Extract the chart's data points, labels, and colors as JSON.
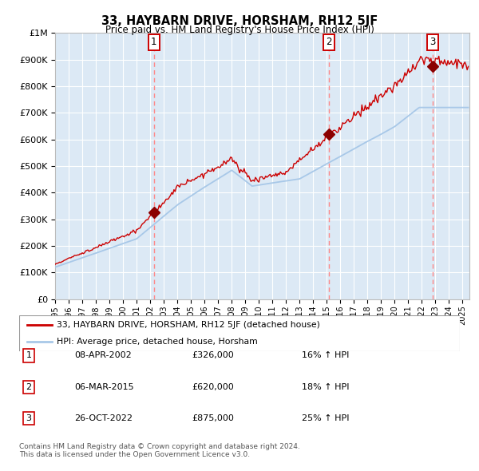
{
  "title": "33, HAYBARN DRIVE, HORSHAM, RH12 5JF",
  "subtitle": "Price paid vs. HM Land Registry's House Price Index (HPI)",
  "legend_line1": "33, HAYBARN DRIVE, HORSHAM, RH12 5JF (detached house)",
  "legend_line2": "HPI: Average price, detached house, Horsham",
  "sale1_date": "08-APR-2002",
  "sale1_price": 326000,
  "sale1_hpi": "16% ↑ HPI",
  "sale2_date": "06-MAR-2015",
  "sale2_price": 620000,
  "sale2_hpi": "18% ↑ HPI",
  "sale3_date": "26-OCT-2022",
  "sale3_price": 875000,
  "sale3_hpi": "25% ↑ HPI",
  "footnote1": "Contains HM Land Registry data © Crown copyright and database right 2024.",
  "footnote2": "This data is licensed under the Open Government Licence v3.0.",
  "hpi_color": "#a8c8e8",
  "price_color": "#cc0000",
  "marker_color": "#8b0000",
  "bg_color": "#dce9f5",
  "grid_color": "#ffffff",
  "dashed_color": "#ff8888",
  "ylim_max": 1000000,
  "xlim_start": 1995.0,
  "xlim_end": 2025.5,
  "sale_dates_decimal": [
    2002.27,
    2015.17,
    2022.81
  ],
  "sale_prices": [
    326000,
    620000,
    875000
  ]
}
